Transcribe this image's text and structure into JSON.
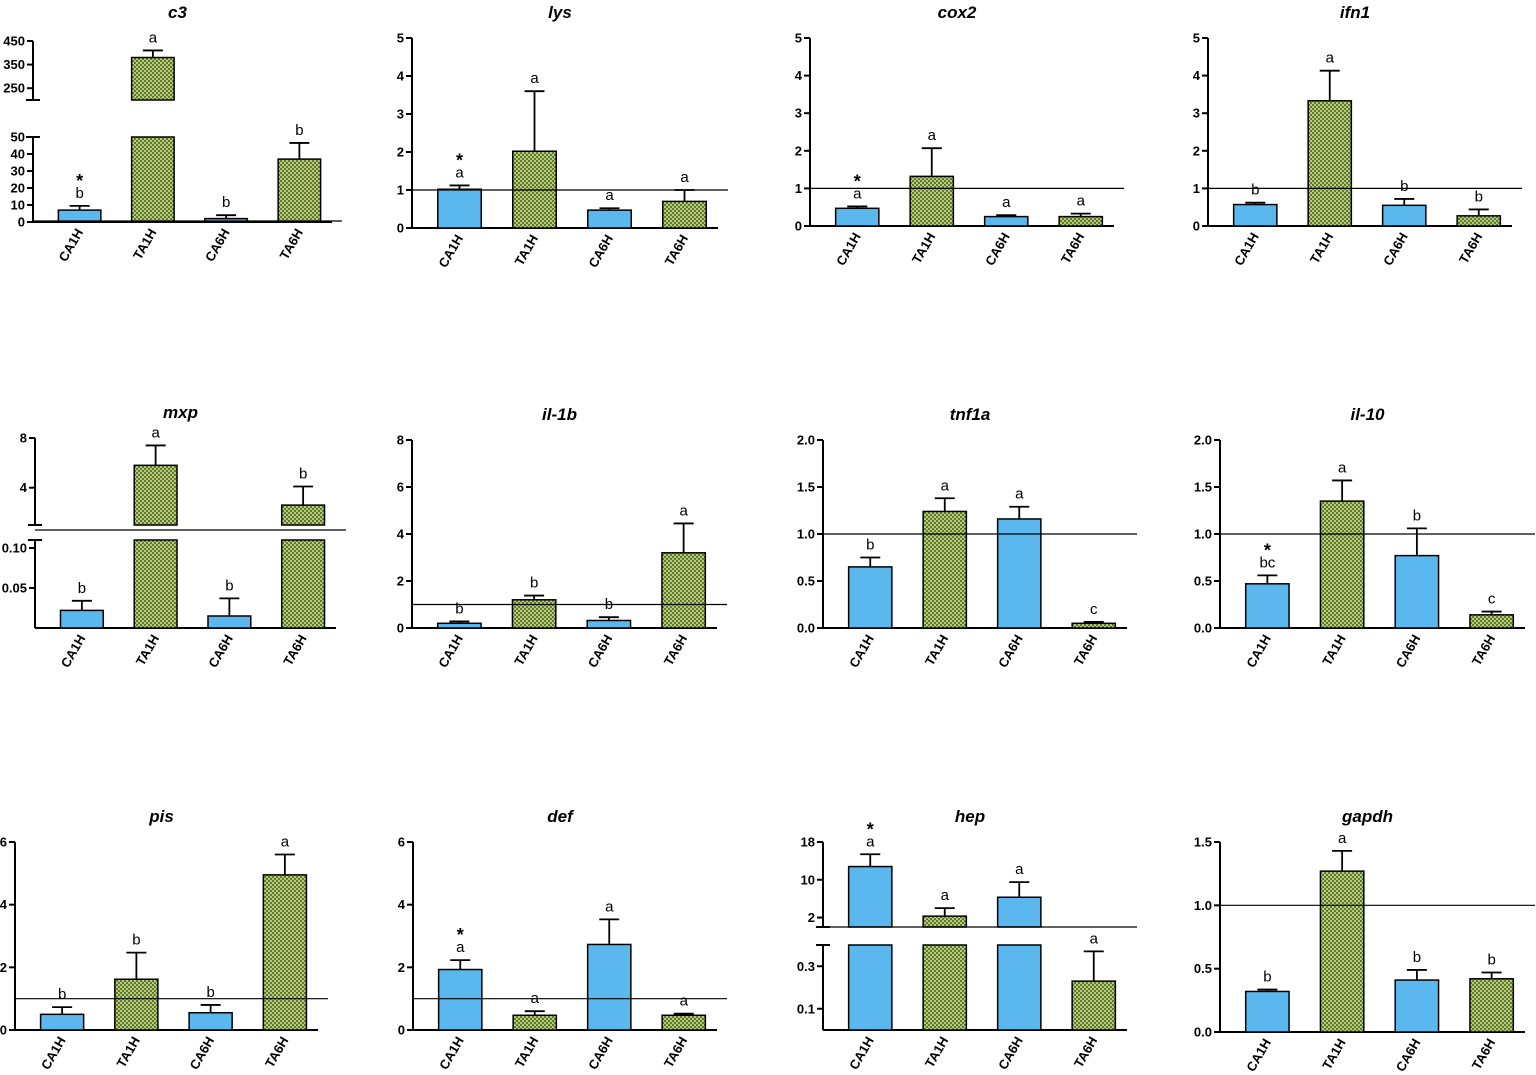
{
  "colors": {
    "control": "#5bb8ee",
    "treated": "#6f8a3a",
    "treated_bg": "#b9c97c",
    "line": "#000000"
  },
  "chart_data": [
    {
      "type": "bar",
      "title": "c3",
      "categories": [
        "CA1H",
        "TA1H",
        "CA6H",
        "TA6H"
      ],
      "values": [
        7,
        380,
        2,
        37
      ],
      "errors": [
        2.5,
        30,
        2,
        9.5
      ],
      "labels": [
        "b",
        "a",
        "b",
        "b"
      ],
      "stars": [
        true,
        false,
        false,
        false
      ],
      "ylim": [
        0,
        450
      ],
      "reference_line": 1,
      "y_break": {
        "lower": [
          0,
          50
        ],
        "upper": [
          200,
          450
        ]
      },
      "yticks_lower": [
        "0",
        "10",
        "20",
        "30",
        "40",
        "50"
      ],
      "yticks_upper": [
        "250",
        "350",
        "450"
      ]
    },
    {
      "type": "bar",
      "title": "lys",
      "categories": [
        "CA1H",
        "TA1H",
        "CA6H",
        "TA6H"
      ],
      "values": [
        1.02,
        2.02,
        0.47,
        0.7
      ],
      "errors": [
        0.1,
        1.58,
        0.05,
        0.3
      ],
      "labels": [
        "a",
        "a",
        "a",
        "a"
      ],
      "stars": [
        true,
        false,
        false,
        false
      ],
      "ylim": [
        0,
        5
      ],
      "reference_line": 1,
      "yticks": [
        "0",
        "1",
        "2",
        "3",
        "4",
        "5"
      ]
    },
    {
      "type": "bar",
      "title": "cox2",
      "categories": [
        "CA1H",
        "TA1H",
        "CA6H",
        "TA6H"
      ],
      "values": [
        0.47,
        1.32,
        0.25,
        0.25
      ],
      "errors": [
        0.05,
        0.75,
        0.04,
        0.08
      ],
      "labels": [
        "a",
        "a",
        "a",
        "a"
      ],
      "stars": [
        true,
        false,
        false,
        false
      ],
      "ylim": [
        0,
        5
      ],
      "reference_line": 1,
      "yticks": [
        "0",
        "1",
        "2",
        "3",
        "4",
        "5"
      ]
    },
    {
      "type": "bar",
      "title": "ifn1",
      "categories": [
        "CA1H",
        "TA1H",
        "CA6H",
        "TA6H"
      ],
      "values": [
        0.57,
        3.33,
        0.55,
        0.27
      ],
      "errors": [
        0.05,
        0.8,
        0.17,
        0.17
      ],
      "labels": [
        "b",
        "a",
        "b",
        "b"
      ],
      "stars": [
        false,
        false,
        false,
        false
      ],
      "ylim": [
        0,
        5
      ],
      "reference_line": 1,
      "yticks": [
        "0",
        "1",
        "2",
        "3",
        "4",
        "5"
      ]
    },
    {
      "type": "bar",
      "title": "mxp",
      "categories": [
        "CA1H",
        "TA1H",
        "CA6H",
        "TA6H"
      ],
      "values": [
        0.022,
        5.8,
        0.015,
        2.6
      ],
      "errors": [
        0.012,
        1.6,
        0.022,
        1.5
      ],
      "labels": [
        "b",
        "a",
        "b",
        "b"
      ],
      "stars": [
        false,
        false,
        false,
        false
      ],
      "ylim": [
        0,
        8
      ],
      "reference_line": 1,
      "y_break": {
        "lower": [
          0,
          0.11
        ],
        "upper": [
          1,
          8
        ]
      },
      "yticks_lower": [
        "0.05",
        "0.10"
      ],
      "yticks_upper": [
        "4",
        "8"
      ]
    },
    {
      "type": "bar",
      "title": "il-1b",
      "categories": [
        "CA1H",
        "TA1H",
        "CA6H",
        "TA6H"
      ],
      "values": [
        0.2,
        1.2,
        0.32,
        3.2
      ],
      "errors": [
        0.08,
        0.18,
        0.14,
        1.25
      ],
      "labels": [
        "b",
        "b",
        "b",
        "a"
      ],
      "stars": [
        false,
        false,
        false,
        false
      ],
      "ylim": [
        0,
        8
      ],
      "reference_line": 1,
      "yticks": [
        "0",
        "2",
        "4",
        "6",
        "8"
      ]
    },
    {
      "type": "bar",
      "title": "tnf1a",
      "categories": [
        "CA1H",
        "TA1H",
        "CA6H",
        "TA6H"
      ],
      "values": [
        0.65,
        1.24,
        1.16,
        0.05
      ],
      "errors": [
        0.1,
        0.14,
        0.13,
        0.015
      ],
      "labels": [
        "b",
        "a",
        "a",
        "c"
      ],
      "stars": [
        false,
        false,
        false,
        false
      ],
      "ylim": [
        0,
        2
      ],
      "reference_line": 1,
      "yticks": [
        "0.0",
        "0.5",
        "1.0",
        "1.5",
        "2.0"
      ]
    },
    {
      "type": "bar",
      "title": "il-10",
      "categories": [
        "CA1H",
        "TA1H",
        "CA6H",
        "TA6H"
      ],
      "values": [
        0.47,
        1.35,
        0.77,
        0.14
      ],
      "errors": [
        0.09,
        0.22,
        0.29,
        0.035
      ],
      "labels": [
        "bc",
        "a",
        "b",
        "c"
      ],
      "stars": [
        true,
        false,
        false,
        false
      ],
      "ylim": [
        0,
        2
      ],
      "reference_line": 1,
      "yticks": [
        "0.0",
        "0.5",
        "1.0",
        "1.5",
        "2.0"
      ]
    },
    {
      "type": "bar",
      "title": "pis",
      "categories": [
        "CA1H",
        "TA1H",
        "CA6H",
        "TA6H"
      ],
      "values": [
        0.5,
        1.62,
        0.55,
        4.95
      ],
      "errors": [
        0.23,
        0.85,
        0.25,
        0.65
      ],
      "labels": [
        "b",
        "b",
        "b",
        "a"
      ],
      "stars": [
        false,
        false,
        false,
        false
      ],
      "ylim": [
        0,
        6
      ],
      "reference_line": 1,
      "yticks": [
        "0",
        "2",
        "4",
        "6"
      ]
    },
    {
      "type": "bar",
      "title": "def",
      "categories": [
        "CA1H",
        "TA1H",
        "CA6H",
        "TA6H"
      ],
      "values": [
        1.93,
        0.47,
        2.73,
        0.47
      ],
      "errors": [
        0.3,
        0.13,
        0.8,
        0.05
      ],
      "labels": [
        "a",
        "a",
        "a",
        "a"
      ],
      "stars": [
        true,
        false,
        false,
        false
      ],
      "ylim": [
        0,
        6
      ],
      "reference_line": 1,
      "yticks": [
        "0",
        "2",
        "4",
        "6"
      ]
    },
    {
      "type": "bar",
      "title": "hep",
      "categories": [
        "CA1H",
        "TA1H",
        "CA6H",
        "TA6H"
      ],
      "values": [
        12.8,
        2.3,
        6.3,
        0.23
      ],
      "errors": [
        2.6,
        1.7,
        3.2,
        0.14
      ],
      "labels": [
        "a",
        "a",
        "a",
        "a"
      ],
      "stars": [
        true,
        false,
        false,
        false
      ],
      "ylim": [
        0,
        18
      ],
      "reference_line": 1,
      "y_break": {
        "lower": [
          0,
          0.4
        ],
        "upper": [
          0,
          18
        ]
      },
      "yticks_lower": [
        "0.1",
        "0.3"
      ],
      "yticks_upper": [
        "2",
        "10",
        "18"
      ]
    },
    {
      "type": "bar",
      "title": "gapdh",
      "categories": [
        "CA1H",
        "TA1H",
        "CA6H",
        "TA6H"
      ],
      "values": [
        0.32,
        1.27,
        0.41,
        0.42
      ],
      "errors": [
        0.015,
        0.16,
        0.08,
        0.05
      ],
      "labels": [
        "b",
        "a",
        "b",
        "b"
      ],
      "stars": [
        false,
        false,
        false,
        false
      ],
      "ylim": [
        0,
        1.5
      ],
      "reference_line": 1,
      "yticks": [
        "0.0",
        "0.5",
        "1.0",
        "1.5"
      ]
    }
  ]
}
